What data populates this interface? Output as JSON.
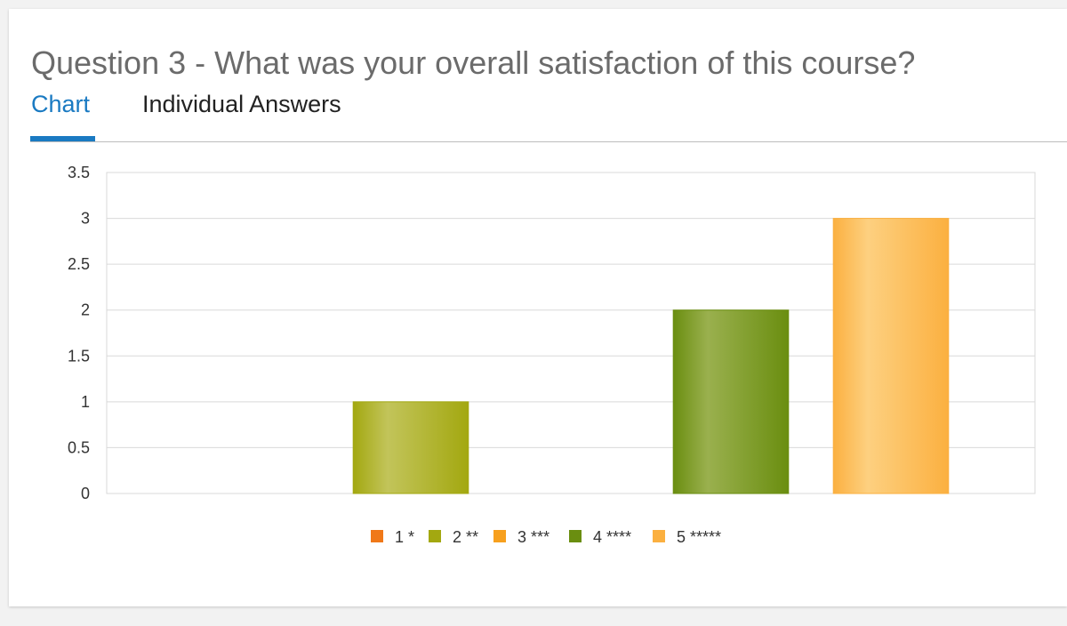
{
  "title": "Question 3 - What was your overall satisfaction of this course?",
  "tabs": [
    {
      "label": "Chart",
      "active": true
    },
    {
      "label": "Individual Answers",
      "active": false
    }
  ],
  "chart_data": {
    "type": "bar",
    "title": "",
    "xlabel": "",
    "ylabel": "",
    "ylim": [
      0,
      3.5
    ],
    "yticks": [
      "0",
      "0.5",
      "1",
      "1.5",
      "2",
      "2.5",
      "3",
      "3.5"
    ],
    "grid": true,
    "legend_placement": "bottom",
    "series": [
      {
        "name": "1 *",
        "value": 0,
        "color": "#f07818",
        "color_light": "#f6a35a"
      },
      {
        "name": "2 **",
        "value": 1,
        "color": "#a3a810",
        "color_light": "#c2c45a"
      },
      {
        "name": "3 ***",
        "value": 0,
        "color": "#f7a01e",
        "color_light": "#fbc060"
      },
      {
        "name": "4 ****",
        "value": 2,
        "color": "#6a8e10",
        "color_light": "#9ab04e"
      },
      {
        "name": "5 *****",
        "value": 3,
        "color": "#fbb040",
        "color_light": "#fdd080"
      }
    ]
  }
}
